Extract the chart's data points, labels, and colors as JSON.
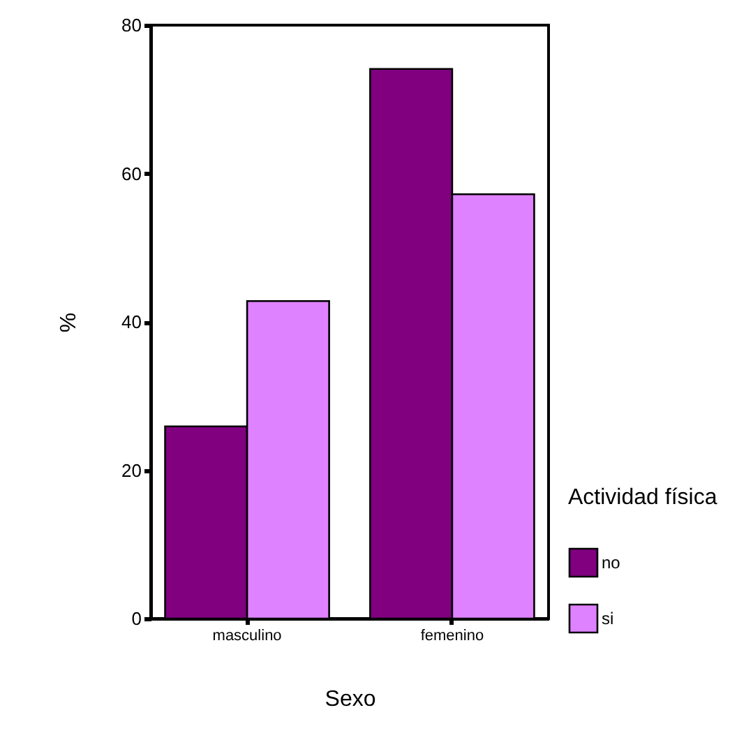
{
  "chart_data": {
    "type": "bar",
    "xlabel": "Sexo",
    "ylabel": "%",
    "legend_title": "Actividad física",
    "categories": [
      "masculino",
      "femenino"
    ],
    "series": [
      {
        "name": "no",
        "color": "#800080",
        "values": [
          25.9,
          74.1
        ]
      },
      {
        "name": "si",
        "color": "#df82ff",
        "values": [
          42.8,
          57.2
        ]
      }
    ],
    "ylim": [
      0,
      80
    ],
    "yticks": [
      0,
      20,
      40,
      60,
      80
    ],
    "grid": false,
    "legend": "bottom right"
  }
}
